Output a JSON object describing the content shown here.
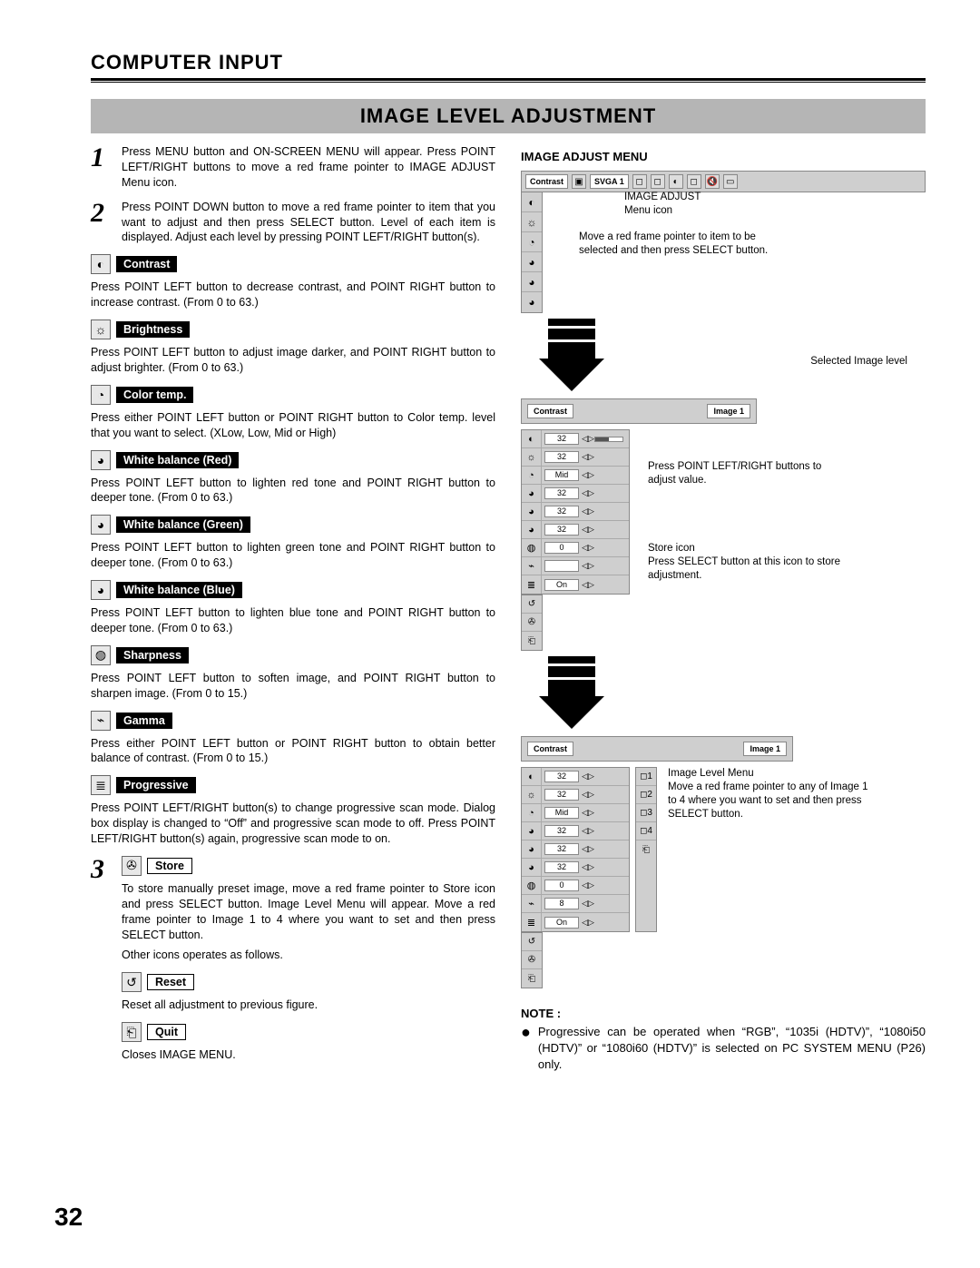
{
  "header": {
    "section": "COMPUTER INPUT",
    "banner": "IMAGE LEVEL ADJUSTMENT"
  },
  "steps": {
    "s1": "Press MENU button and ON-SCREEN MENU will appear.  Press POINT LEFT/RIGHT buttons to move a red frame pointer to IMAGE ADJUST Menu icon.",
    "s2": "Press POINT DOWN button to move a red frame pointer to item that you want to adjust and then press SELECT button. Level of each item is displayed. Adjust each level by pressing POINT LEFT/RIGHT button(s)."
  },
  "params": {
    "contrast": {
      "label": "Contrast",
      "desc": "Press POINT LEFT button to decrease contrast, and POINT RIGHT button to increase contrast.  (From 0 to 63.)"
    },
    "brightness": {
      "label": "Brightness",
      "desc": "Press POINT LEFT button to adjust image darker, and POINT RIGHT button to adjust brighter.  (From 0 to 63.)"
    },
    "colortemp": {
      "label": "Color temp.",
      "desc": "Press either POINT LEFT button or POINT RIGHT button to Color temp. level that you want to select. (XLow, Low, Mid or High)"
    },
    "wbr": {
      "label": "White balance (Red)",
      "desc": "Press POINT LEFT button to lighten red tone and POINT RIGHT button to deeper tone.  (From 0 to 63.)"
    },
    "wbg": {
      "label": "White balance (Green)",
      "desc": "Press POINT LEFT button to lighten green tone and POINT RIGHT button to deeper tone.  (From 0 to 63.)"
    },
    "wbb": {
      "label": "White balance (Blue)",
      "desc": "Press POINT LEFT button to lighten blue tone and POINT RIGHT button to deeper tone.  (From 0 to 63.)"
    },
    "sharp": {
      "label": "Sharpness",
      "desc": "Press POINT LEFT button to soften image, and POINT RIGHT button to sharpen image.  (From 0 to 15.)"
    },
    "gamma": {
      "label": "Gamma",
      "desc": "Press either POINT LEFT button or POINT RIGHT button to obtain better balance of contrast.  (From 0 to 15.)"
    },
    "prog": {
      "label": "Progressive",
      "desc": "Press POINT LEFT/RIGHT button(s) to change progressive scan mode. Dialog box display is changed to “Off” and progressive scan mode to off. Press POINT LEFT/RIGHT button(s) again, progressive scan mode to on."
    }
  },
  "step3": {
    "store": {
      "label": "Store",
      "desc": "To store manually preset image, move a red frame pointer to Store icon and press SELECT button.  Image Level Menu will appear.  Move a red frame pointer to Image 1 to 4 where you want to set and then press SELECT button.",
      "other": "Other icons operates as follows."
    },
    "reset": {
      "label": "Reset",
      "desc": "Reset all adjustment to previous figure."
    },
    "quit": {
      "label": "Quit",
      "desc": "Closes IMAGE MENU."
    }
  },
  "right": {
    "menu_title": "IMAGE ADJUST MENU",
    "topbar": {
      "name": "Contrast",
      "mode": "SVGA 1"
    },
    "annot1": "IMAGE ADJUST\nMenu icon",
    "annot2": "Move a red frame pointer to item to be selected and then press SELECT button.",
    "annot3": "Selected Image level",
    "valuebar": {
      "name": "Contrast",
      "image": "Image 1"
    },
    "annot4": "Press POINT LEFT/RIGHT buttons to adjust value.",
    "annot5a": "Store icon",
    "annot5b": "Press SELECT button at this icon to store adjustment.",
    "annot6": "Image Level Menu\nMove a red frame pointer to any of Image 1 to 4 where you want to set  and then press SELECT button.",
    "rows1": [
      {
        "v": "32"
      },
      {
        "v": "32"
      },
      {
        "v": "Mid"
      },
      {
        "v": "32"
      },
      {
        "v": "32"
      },
      {
        "v": "32"
      },
      {
        "v": "0"
      },
      {
        "v": ""
      },
      {
        "v": "On"
      }
    ],
    "rows2": [
      {
        "v": "32"
      },
      {
        "v": "32"
      },
      {
        "v": "Mid"
      },
      {
        "v": "32"
      },
      {
        "v": "32"
      },
      {
        "v": "32"
      },
      {
        "v": "0"
      },
      {
        "v": "8"
      },
      {
        "v": "On"
      }
    ]
  },
  "note": {
    "title": "NOTE :",
    "body": "Progressive can be operated when  “RGB”, “1035i (HDTV)”, “1080i50 (HDTV)” or “1080i60 (HDTV)” is selected on PC SYSTEM MENU (P26) only."
  },
  "page_number": "32",
  "icons": {
    "contrast": "◐",
    "brightness": "☼",
    "colortemp": "◔",
    "wbr": "◕",
    "wbg": "◕",
    "wbb": "◕",
    "sharp": "◍",
    "gamma": "⌁",
    "prog": "≣",
    "store": "✇",
    "reset": "↺",
    "quit": "⎗"
  }
}
